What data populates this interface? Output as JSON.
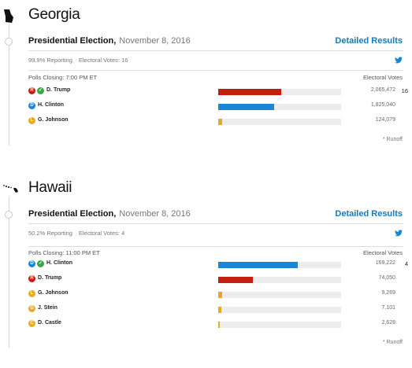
{
  "states": [
    {
      "name": "Georgia",
      "icon": "georgia-state-shape-icon",
      "race_title": "Presidential Election,",
      "race_date": "November 8, 2016",
      "detailed_label": "Detailed Results",
      "reporting": "99.9% Reporting",
      "electoral_votes": "Electoral Votes: 16",
      "polls_closing": "Polls Closing: 7:00 PM ET",
      "ev_header": "Electoral Votes",
      "footnote": "* Runoff",
      "candidates": [
        {
          "party": "R",
          "color": "#c21f0e",
          "winner": true,
          "name": "D. Trump",
          "pct": "51.4%",
          "pct_value": 51.4,
          "votes": "2,065,472",
          "ev": "16"
        },
        {
          "party": "D",
          "color": "#1a86d8",
          "winner": false,
          "name": "H. Clinton",
          "pct": "45.5%",
          "pct_value": 45.5,
          "votes": "1,825,040",
          "ev": ""
        },
        {
          "party": "L",
          "color": "#e8a92a",
          "winner": false,
          "name": "G. Johnson",
          "pct": "3.1%",
          "pct_value": 3.1,
          "votes": "124,079",
          "ev": ""
        }
      ]
    },
    {
      "name": "Hawaii",
      "icon": "hawaii-state-shape-icon",
      "race_title": "Presidential Election,",
      "race_date": "November 8, 2016",
      "detailed_label": "Detailed Results",
      "reporting": "50.2% Reporting",
      "electoral_votes": "Electoral Votes: 4",
      "polls_closing": "Polls Closing: 11:00 PM ET",
      "ev_header": "Electoral Votes",
      "footnote": "* Runoff",
      "candidates": [
        {
          "party": "D",
          "color": "#1a86d8",
          "winner": true,
          "name": "H. Clinton",
          "pct": "64.5%",
          "pct_value": 64.5,
          "votes": "169,222",
          "ev": "4"
        },
        {
          "party": "R",
          "color": "#c21f0e",
          "winner": false,
          "name": "D. Trump",
          "pct": "28.2%",
          "pct_value": 28.2,
          "votes": "74,050",
          "ev": ""
        },
        {
          "party": "L",
          "color": "#e8a92a",
          "winner": false,
          "name": "G. Johnson",
          "pct": "3.5%",
          "pct_value": 3.5,
          "votes": "9,269",
          "ev": ""
        },
        {
          "party": "G",
          "color": "#e8a92a",
          "winner": false,
          "name": "J. Stein",
          "pct": "2.7%",
          "pct_value": 2.7,
          "votes": "7,101",
          "ev": ""
        },
        {
          "party": "C",
          "color": "#e8a92a",
          "winner": false,
          "name": "D. Castle",
          "pct": "1.0%",
          "pct_value": 1.0,
          "votes": "2,628",
          "ev": ""
        }
      ]
    }
  ]
}
